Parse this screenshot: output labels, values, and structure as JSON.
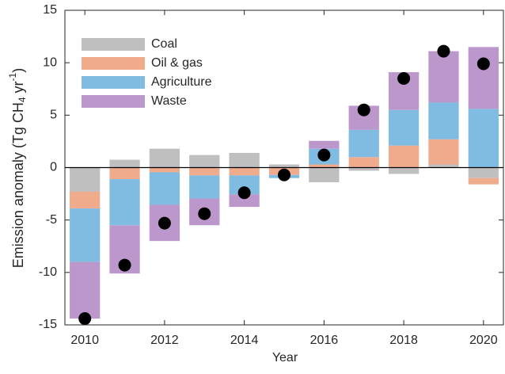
{
  "chart_data": {
    "type": "stacked-bar",
    "ylabel": [
      "Emission anomaly (Tg CH",
      "4",
      " yr",
      "-1",
      ")"
    ],
    "xlabel": "Year",
    "x": [
      2010,
      2011,
      2012,
      2013,
      2014,
      2015,
      2016,
      2017,
      2018,
      2019,
      2020
    ],
    "series": [
      {
        "name": "Coal",
        "color": "#bfbfbf",
        "values": [
          -2.3,
          0.75,
          1.8,
          1.2,
          1.4,
          0.3,
          -1.4,
          -0.3,
          -0.6,
          0.3,
          -1.0
        ]
      },
      {
        "name": "Oil & gas",
        "color": "#f0aa8c",
        "values": [
          -1.6,
          -1.1,
          -0.45,
          -0.75,
          -0.75,
          -0.7,
          0.3,
          1.0,
          2.1,
          2.4,
          -0.6
        ]
      },
      {
        "name": "Agriculture",
        "color": "#80bbe2",
        "values": [
          -5.1,
          -4.4,
          -3.1,
          -2.2,
          -1.8,
          -0.3,
          1.5,
          2.6,
          3.4,
          3.5,
          5.6
        ]
      },
      {
        "name": "Waste",
        "color": "#bc97cb",
        "values": [
          -5.4,
          -4.6,
          -3.45,
          -2.55,
          -1.2,
          0,
          0.75,
          2.3,
          3.6,
          4.9,
          5.9
        ]
      }
    ],
    "points": {
      "color": "#000000",
      "values": [
        -14.4,
        -9.3,
        -5.3,
        -4.4,
        -2.4,
        -0.7,
        1.2,
        5.5,
        8.5,
        11.1,
        9.9
      ]
    },
    "xlim": [
      2009.5,
      2020.5
    ],
    "xticks": [
      2010,
      2012,
      2014,
      2016,
      2018,
      2020
    ],
    "ylim": [
      -15,
      15
    ],
    "yticks": [
      -15,
      -10,
      -5,
      0,
      5,
      10,
      15
    ],
    "legend": "upper-left"
  }
}
